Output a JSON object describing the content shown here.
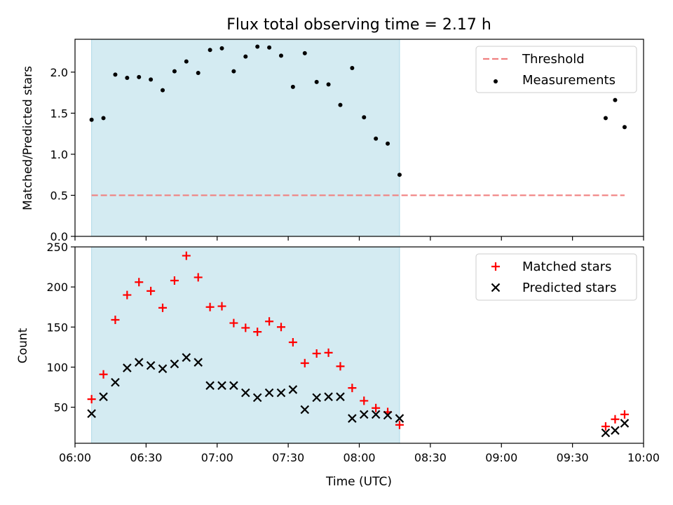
{
  "chart_data": [
    {
      "type": "scatter",
      "title": "Flux total observing time = 2.17 h",
      "ylabel": "Matched/Predicted stars",
      "xlabel": "",
      "ylim": [
        0,
        2.4
      ],
      "yticks": [
        0.0,
        0.5,
        1.0,
        1.5,
        2.0
      ],
      "ytick_labels": [
        "0.0",
        "0.5",
        "1.0",
        "1.5",
        "2.0"
      ],
      "shaded_interval": [
        "06:07",
        "08:17"
      ],
      "shade_color": "#add8e6",
      "legend_position": "top-right",
      "series": [
        {
          "name": "Threshold",
          "kind": "dashed-line",
          "color": "#f08080",
          "x": [
            "06:07",
            "09:52"
          ],
          "y": [
            0.5,
            0.5
          ]
        },
        {
          "name": "Measurements",
          "kind": "dot",
          "color": "#000000",
          "x": [
            "06:07",
            "06:12",
            "06:17",
            "06:22",
            "06:27",
            "06:32",
            "06:37",
            "06:42",
            "06:47",
            "06:52",
            "06:57",
            "07:02",
            "07:07",
            "07:12",
            "07:17",
            "07:22",
            "07:27",
            "07:32",
            "07:37",
            "07:42",
            "07:47",
            "07:52",
            "07:57",
            "08:02",
            "08:07",
            "08:12",
            "08:17",
            "09:44",
            "09:48",
            "09:52"
          ],
          "y": [
            1.42,
            1.44,
            1.97,
            1.93,
            1.94,
            1.91,
            1.78,
            2.01,
            2.13,
            1.99,
            2.27,
            2.29,
            2.01,
            2.19,
            2.31,
            2.3,
            2.2,
            1.82,
            2.23,
            1.88,
            1.85,
            1.6,
            2.05,
            1.45,
            1.19,
            1.13,
            0.75,
            1.44,
            1.66,
            1.33
          ]
        }
      ]
    },
    {
      "type": "scatter",
      "title": "",
      "xlabel": "Time (UTC)",
      "ylabel": "Count",
      "ylim": [
        5,
        250
      ],
      "yticks": [
        50,
        100,
        150,
        200,
        250
      ],
      "ytick_labels": [
        "50",
        "100",
        "150",
        "200",
        "250"
      ],
      "xlim": [
        "06:00",
        "10:00"
      ],
      "xticks": [
        "06:00",
        "06:30",
        "07:00",
        "07:30",
        "08:00",
        "08:30",
        "09:00",
        "09:30",
        "10:00"
      ],
      "shaded_interval": [
        "06:07",
        "08:17"
      ],
      "shade_color": "#add8e6",
      "legend_position": "top-right",
      "series": [
        {
          "name": "Matched stars",
          "kind": "plus",
          "color": "#ff0000",
          "x": [
            "06:07",
            "06:12",
            "06:17",
            "06:22",
            "06:27",
            "06:32",
            "06:37",
            "06:42",
            "06:47",
            "06:52",
            "06:57",
            "07:02",
            "07:07",
            "07:12",
            "07:17",
            "07:22",
            "07:27",
            "07:32",
            "07:37",
            "07:42",
            "07:47",
            "07:52",
            "07:57",
            "08:02",
            "08:07",
            "08:12",
            "08:17",
            "09:44",
            "09:48",
            "09:52"
          ],
          "y": [
            60,
            91,
            159,
            190,
            206,
            195,
            174,
            208,
            239,
            212,
            175,
            176,
            155,
            149,
            144,
            157,
            150,
            131,
            105,
            117,
            118,
            101,
            74,
            58,
            49,
            44,
            28,
            26,
            35,
            41
          ]
        },
        {
          "name": "Predicted stars",
          "kind": "x",
          "color": "#000000",
          "x": [
            "06:07",
            "06:12",
            "06:17",
            "06:22",
            "06:27",
            "06:32",
            "06:37",
            "06:42",
            "06:47",
            "06:52",
            "06:57",
            "07:02",
            "07:07",
            "07:12",
            "07:17",
            "07:22",
            "07:27",
            "07:32",
            "07:37",
            "07:42",
            "07:47",
            "07:52",
            "07:57",
            "08:02",
            "08:07",
            "08:12",
            "08:17",
            "09:44",
            "09:48",
            "09:52"
          ],
          "y": [
            42,
            63,
            81,
            99,
            106,
            102,
            98,
            104,
            112,
            106,
            77,
            77,
            77,
            68,
            62,
            68,
            68,
            72,
            47,
            62,
            63,
            63,
            36,
            41,
            41,
            40,
            36,
            18,
            21,
            30
          ]
        }
      ]
    }
  ]
}
